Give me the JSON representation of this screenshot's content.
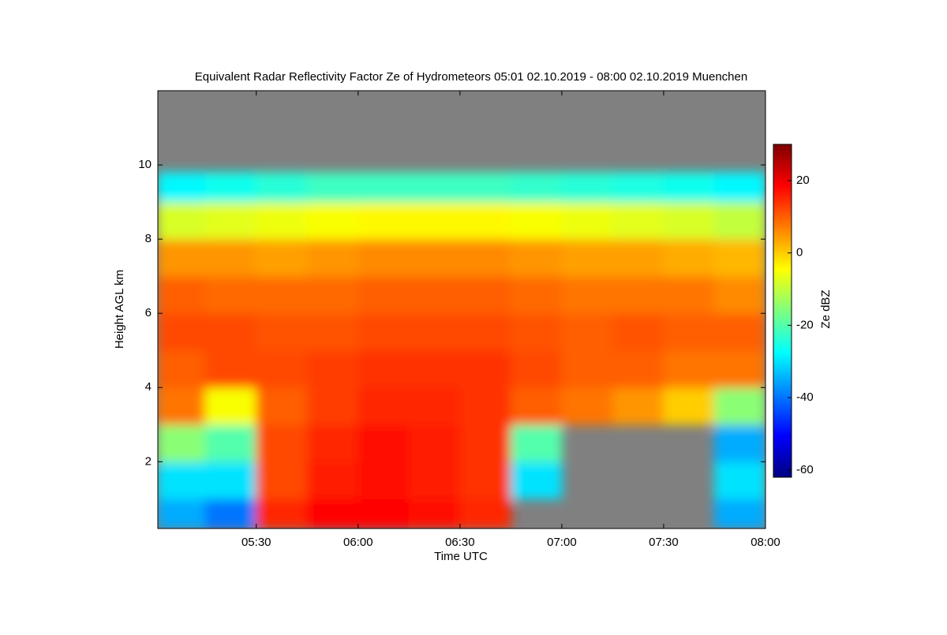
{
  "chart_data": {
    "type": "heatmap",
    "title": "Equivalent Radar Reflectivity Factor Ze of Hydrometeors   05:01 02.10.2019 - 08:00 02.10.2019 Muenchen",
    "x_label": "Time UTC",
    "y_label": "Height AGL km",
    "colorbar_label": "Ze dBZ",
    "xlim": [
      301,
      480
    ],
    "xticks": [
      {
        "value": 330,
        "label": "05:30"
      },
      {
        "value": 360,
        "label": "06:00"
      },
      {
        "value": 390,
        "label": "06:30"
      },
      {
        "value": 420,
        "label": "07:00"
      },
      {
        "value": 450,
        "label": "07:30"
      },
      {
        "value": 480,
        "label": "08:00"
      }
    ],
    "ylim": [
      0.2,
      12
    ],
    "yticks": [
      2,
      4,
      6,
      8,
      10
    ],
    "zlim": [
      -62,
      30
    ],
    "zticks": [
      -60,
      -40,
      -20,
      0,
      20
    ],
    "colorscale": [
      "#00007f",
      "#0000ff",
      "#007fff",
      "#00ffff",
      "#7fff7f",
      "#ffff00",
      "#ff7f00",
      "#ff0000",
      "#7f0000"
    ],
    "background": "#808080",
    "x_bins": [
      301,
      315,
      330,
      345,
      360,
      375,
      390,
      405,
      420,
      435,
      450,
      465,
      480
    ],
    "y_bins": [
      0.2,
      1,
      2,
      3,
      4,
      5,
      6,
      7,
      8,
      9,
      9.8,
      12
    ],
    "z": [
      [
        -35,
        -40,
        15,
        18,
        18,
        17,
        15,
        null,
        null,
        null,
        null,
        -35
      ],
      [
        -30,
        -30,
        12,
        16,
        17,
        16,
        14,
        -30,
        null,
        null,
        null,
        -30
      ],
      [
        -15,
        -20,
        12,
        15,
        17,
        16,
        14,
        -20,
        null,
        null,
        null,
        -35
      ],
      [
        8,
        -5,
        10,
        13,
        15,
        15,
        14,
        10,
        8,
        5,
        0,
        -15
      ],
      [
        10,
        12,
        12,
        13,
        14,
        14,
        14,
        12,
        10,
        10,
        8,
        8
      ],
      [
        12,
        12,
        11,
        11,
        12,
        12,
        12,
        11,
        10,
        11,
        10,
        10
      ],
      [
        10,
        9,
        9,
        9,
        10,
        10,
        10,
        9,
        8,
        8,
        8,
        6
      ],
      [
        5,
        5,
        4,
        5,
        6,
        6,
        6,
        5,
        4,
        4,
        3,
        2
      ],
      [
        -8,
        -7,
        -6,
        -5,
        -4,
        -4,
        -4,
        -5,
        -6,
        -7,
        -8,
        -10
      ],
      [
        -28,
        -26,
        -24,
        -22,
        -22,
        -22,
        -22,
        -23,
        -24,
        -25,
        -26,
        -28
      ],
      [
        null,
        null,
        null,
        null,
        null,
        null,
        null,
        null,
        null,
        null,
        null,
        null
      ]
    ]
  }
}
